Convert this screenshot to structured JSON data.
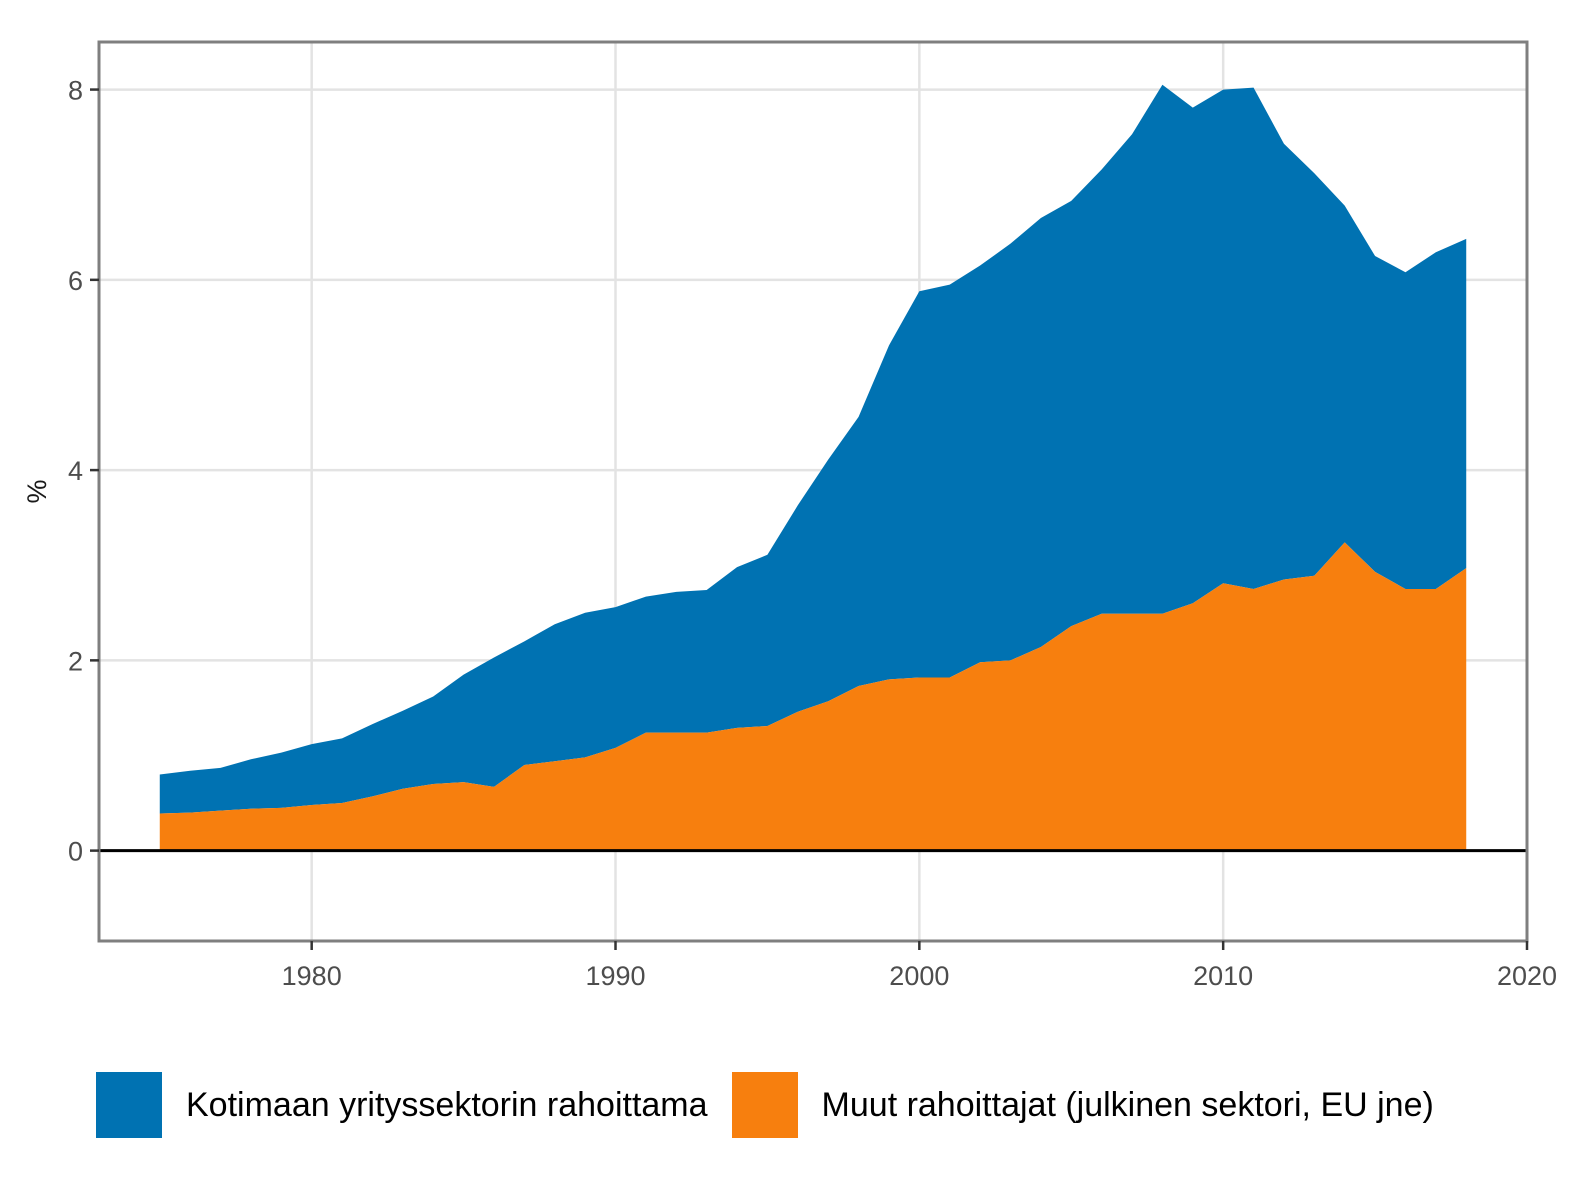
{
  "chart_data": {
    "type": "area",
    "stacked": true,
    "title": "",
    "xlabel": "",
    "ylabel": "%",
    "xlim": [
      1973,
      2020
    ],
    "ylim": [
      -0.95,
      8.5
    ],
    "x_ticks": [
      1980,
      1990,
      2000,
      2010,
      2020
    ],
    "y_ticks": [
      0,
      2,
      4,
      6,
      8
    ],
    "grid": true,
    "zero_line": true,
    "legend_position": "bottom",
    "x": [
      1975,
      1976,
      1977,
      1978,
      1979,
      1980,
      1981,
      1982,
      1983,
      1984,
      1985,
      1986,
      1987,
      1988,
      1989,
      1990,
      1991,
      1992,
      1993,
      1994,
      1995,
      1996,
      1997,
      1998,
      1999,
      2000,
      2001,
      2002,
      2003,
      2004,
      2005,
      2006,
      2007,
      2008,
      2009,
      2010,
      2011,
      2012,
      2013,
      2014,
      2015,
      2016,
      2017,
      2018
    ],
    "series": [
      {
        "name": "Kotimaan yrityssektorin rahoittama",
        "color": "#0072B2",
        "values": [
          0.41,
          0.44,
          0.45,
          0.52,
          0.58,
          0.64,
          0.68,
          0.76,
          0.82,
          0.92,
          1.13,
          1.36,
          1.3,
          1.44,
          1.52,
          1.48,
          1.43,
          1.48,
          1.5,
          1.69,
          1.8,
          2.17,
          2.54,
          2.83,
          3.51,
          4.06,
          4.13,
          4.17,
          4.38,
          4.51,
          4.47,
          4.67,
          5.04,
          5.56,
          5.21,
          5.19,
          5.27,
          4.58,
          4.23,
          3.54,
          3.32,
          3.33,
          3.54,
          3.46
        ]
      },
      {
        "name": "Muut rahoittajat (julkinen sektori, EU jne)",
        "color": "#F77F0E",
        "values": [
          0.39,
          0.4,
          0.42,
          0.44,
          0.45,
          0.48,
          0.5,
          0.57,
          0.65,
          0.7,
          0.72,
          0.67,
          0.9,
          0.94,
          0.98,
          1.08,
          1.24,
          1.24,
          1.24,
          1.29,
          1.31,
          1.46,
          1.57,
          1.73,
          1.8,
          1.82,
          1.82,
          1.98,
          2.0,
          2.14,
          2.36,
          2.49,
          2.49,
          2.49,
          2.6,
          2.81,
          2.75,
          2.85,
          2.89,
          3.24,
          2.93,
          2.75,
          2.75,
          2.97
        ]
      }
    ]
  },
  "legend": {
    "items": [
      {
        "label": "Kotimaan yrityssektorin rahoittama",
        "color": "#0072B2"
      },
      {
        "label": "Muut rahoittajat (julkinen sektori, EU jne)",
        "color": "#F77F0E"
      }
    ]
  }
}
